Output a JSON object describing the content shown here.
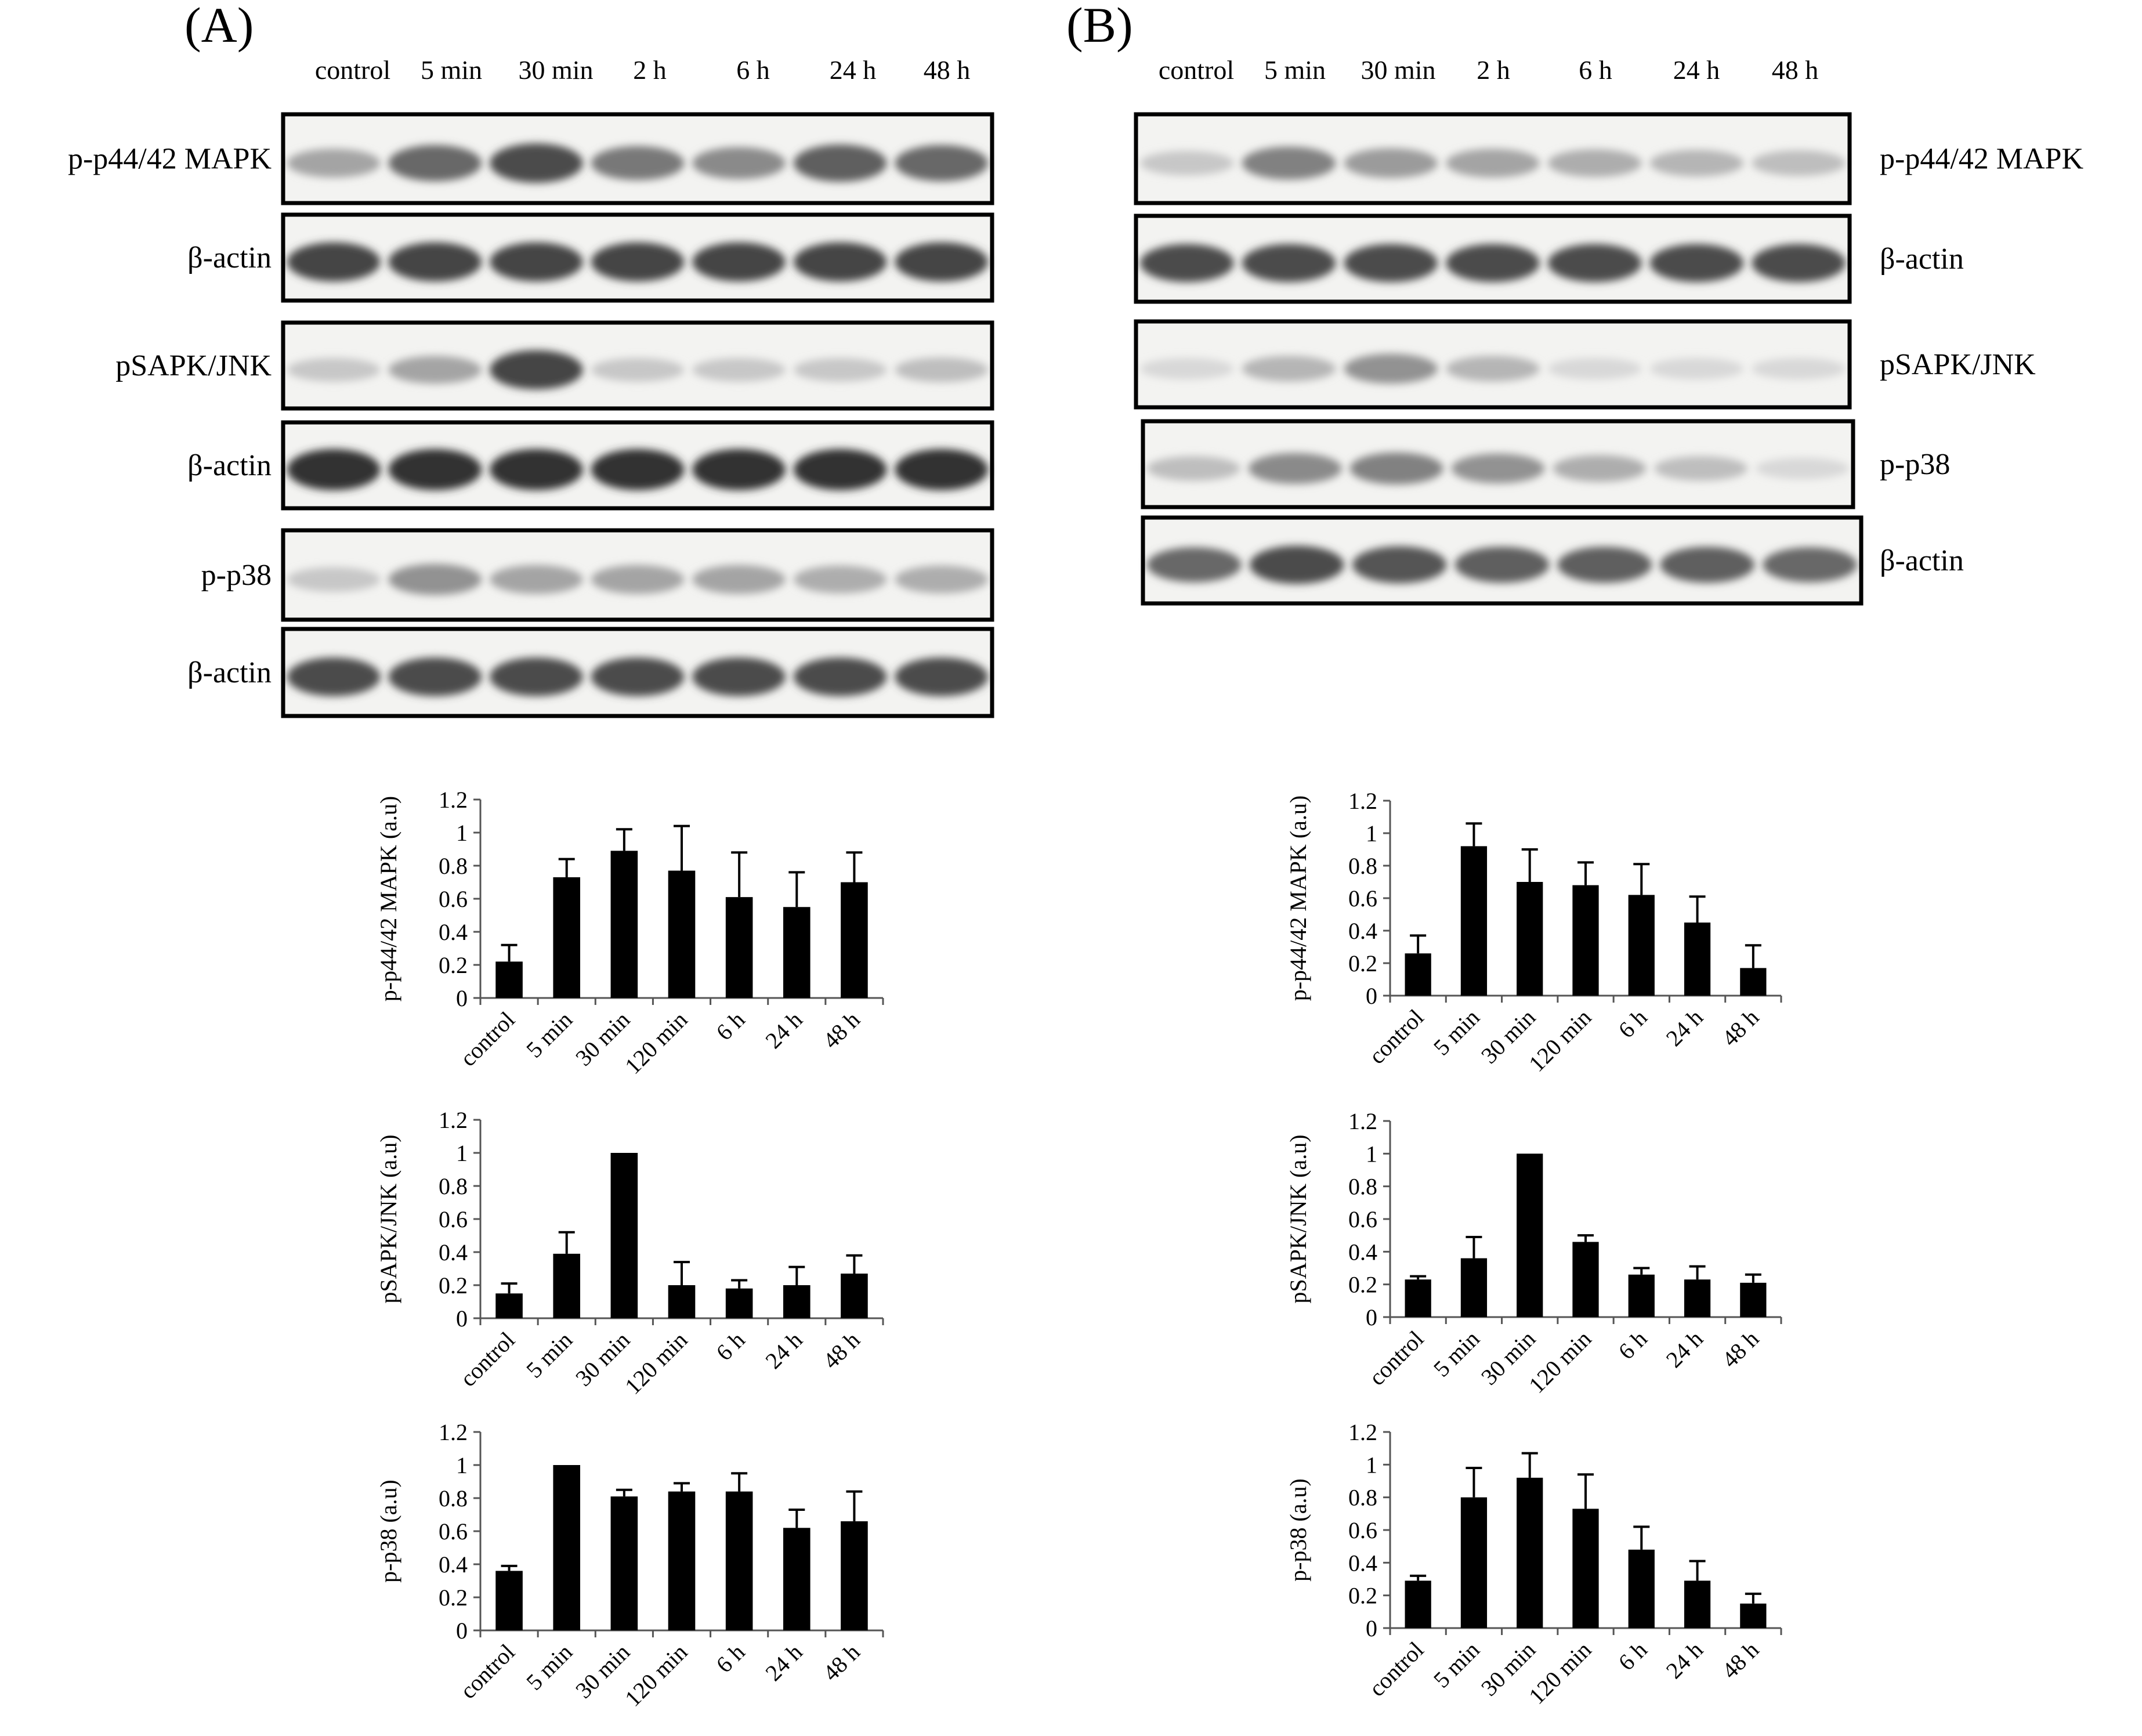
{
  "panels": [
    {
      "label": "(A)",
      "lanes": [
        "control",
        "5 min",
        "30 min",
        "2 h",
        "6 h",
        "24 h",
        "48 h"
      ],
      "blots": [
        {
          "label": "p-p44/42 MAPK",
          "intensity": [
            0.35,
            0.7,
            0.85,
            0.6,
            0.5,
            0.75,
            0.7
          ]
        },
        {
          "label": "β-actin",
          "intensity": [
            0.9,
            0.9,
            0.9,
            0.9,
            0.9,
            0.9,
            0.9
          ]
        },
        {
          "label": "pSAPK/JNK",
          "intensity": [
            0.15,
            0.35,
            0.9,
            0.15,
            0.15,
            0.15,
            0.2
          ]
        },
        {
          "label": "β-actin",
          "intensity": [
            1,
            1,
            1,
            1,
            1,
            1,
            1
          ]
        },
        {
          "label": "p-p38",
          "intensity": [
            0.15,
            0.45,
            0.35,
            0.35,
            0.35,
            0.3,
            0.3
          ]
        },
        {
          "label": "β-actin",
          "intensity": [
            0.85,
            0.85,
            0.85,
            0.85,
            0.85,
            0.85,
            0.85
          ]
        }
      ]
    },
    {
      "label": "(B)",
      "lanes": [
        "control",
        "5 min",
        "30 min",
        "2 h",
        "6 h",
        "24 h",
        "48 h"
      ],
      "blots": [
        {
          "label": "p-p44/42 MAPK",
          "intensity": [
            0.15,
            0.55,
            0.4,
            0.35,
            0.3,
            0.25,
            0.2
          ]
        },
        {
          "label": "β-actin",
          "intensity": [
            0.85,
            0.85,
            0.85,
            0.85,
            0.85,
            0.85,
            0.85
          ]
        },
        {
          "label": "pSAPK/JNK",
          "intensity": [
            0.05,
            0.25,
            0.45,
            0.25,
            0.05,
            0.05,
            0.05
          ]
        },
        {
          "label": "p-p38",
          "intensity": [
            0.2,
            0.5,
            0.55,
            0.45,
            0.3,
            0.2,
            0.05
          ]
        },
        {
          "label": "β-actin",
          "intensity": [
            0.7,
            0.85,
            0.8,
            0.75,
            0.75,
            0.75,
            0.7
          ]
        }
      ]
    }
  ],
  "chart_data": [
    {
      "type": "bar",
      "panel": "(A)",
      "ylabel": "p-p44/42 MAPK (a.u)",
      "ylim": [
        0,
        1.2
      ],
      "yticks": [
        "0",
        "0.2",
        "0.4",
        "0.6",
        "0.8",
        "1",
        "1.2"
      ],
      "categories": [
        "control",
        "5 min",
        "30 min",
        "120 min",
        "6 h",
        "24 h",
        "48 h"
      ],
      "values": [
        0.22,
        0.73,
        0.89,
        0.77,
        0.61,
        0.55,
        0.7
      ],
      "errors": [
        0.1,
        0.11,
        0.13,
        0.27,
        0.27,
        0.21,
        0.18
      ]
    },
    {
      "type": "bar",
      "panel": "(A)",
      "ylabel": "pSAPK/JNK  (a.u)",
      "ylim": [
        0,
        1.2
      ],
      "yticks": [
        "0",
        "0.2",
        "0.4",
        "0.6",
        "0.8",
        "1",
        "1.2"
      ],
      "categories": [
        "control",
        "5 min",
        "30 min",
        "120 min",
        "6 h",
        "24 h",
        "48 h"
      ],
      "values": [
        0.15,
        0.39,
        1.0,
        0.2,
        0.18,
        0.2,
        0.27
      ],
      "errors": [
        0.06,
        0.13,
        0.0,
        0.14,
        0.05,
        0.11,
        0.11
      ]
    },
    {
      "type": "bar",
      "panel": "(A)",
      "ylabel": "p-p38 (a.u)",
      "ylim": [
        0,
        1.2
      ],
      "yticks": [
        "0",
        "0.2",
        "0.4",
        "0.6",
        "0.8",
        "1",
        "1.2"
      ],
      "categories": [
        "control",
        "5 min",
        "30 min",
        "120 min",
        "6 h",
        "24 h",
        "48 h"
      ],
      "values": [
        0.36,
        1.0,
        0.81,
        0.84,
        0.84,
        0.62,
        0.66
      ],
      "errors": [
        0.03,
        0.0,
        0.04,
        0.05,
        0.11,
        0.11,
        0.18
      ]
    },
    {
      "type": "bar",
      "panel": "(B)",
      "ylabel": "p-p44/42 MAPK (a.u)",
      "ylim": [
        0,
        1.2
      ],
      "yticks": [
        "0",
        "0.2",
        "0.4",
        "0.6",
        "0.8",
        "1",
        "1.2"
      ],
      "categories": [
        "control",
        "5 min",
        "30 min",
        "120 min",
        "6 h",
        "24 h",
        "48 h"
      ],
      "values": [
        0.26,
        0.92,
        0.7,
        0.68,
        0.62,
        0.45,
        0.17
      ],
      "errors": [
        0.11,
        0.14,
        0.2,
        0.14,
        0.19,
        0.16,
        0.14
      ]
    },
    {
      "type": "bar",
      "panel": "(B)",
      "ylabel": "pSAPK/JNK  (a.u)",
      "ylim": [
        0,
        1.2
      ],
      "yticks": [
        "0",
        "0.2",
        "0.4",
        "0.6",
        "0.8",
        "1",
        "1.2"
      ],
      "categories": [
        "control",
        "5 min",
        "30 min",
        "120 min",
        "6 h",
        "24 h",
        "48 h"
      ],
      "values": [
        0.23,
        0.36,
        1.0,
        0.46,
        0.26,
        0.23,
        0.21
      ],
      "errors": [
        0.02,
        0.13,
        0.0,
        0.04,
        0.04,
        0.08,
        0.05
      ]
    },
    {
      "type": "bar",
      "panel": "(B)",
      "ylabel": "p-p38 (a.u)",
      "ylim": [
        0,
        1.2
      ],
      "yticks": [
        "0",
        "0.2",
        "0.4",
        "0.6",
        "0.8",
        "1",
        "1.2"
      ],
      "categories": [
        "control",
        "5 min",
        "30 min",
        "120 min",
        "6 h",
        "24 h",
        "48 h"
      ],
      "values": [
        0.29,
        0.8,
        0.92,
        0.73,
        0.48,
        0.29,
        0.15
      ],
      "errors": [
        0.03,
        0.18,
        0.15,
        0.21,
        0.14,
        0.12,
        0.06
      ]
    }
  ]
}
